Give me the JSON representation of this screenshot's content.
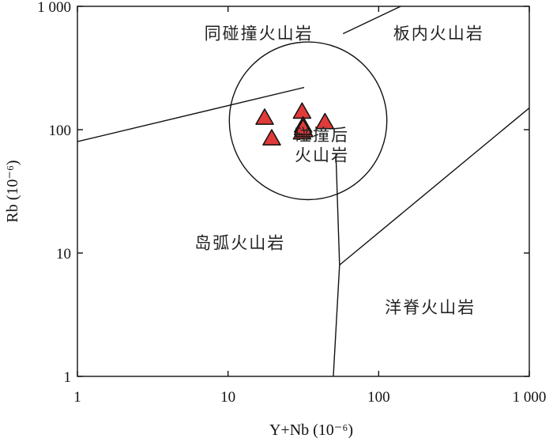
{
  "chart_data": {
    "type": "scatter",
    "title": "",
    "xlabel": "Y+Nb (10⁻⁶)",
    "ylabel": "Rb (10⁻⁶)",
    "xscale": "log",
    "yscale": "log",
    "xlim": [
      1,
      1000
    ],
    "ylim": [
      1,
      1000
    ],
    "x_ticks": [
      {
        "value": 1,
        "label": "1"
      },
      {
        "value": 10,
        "label": "10"
      },
      {
        "value": 100,
        "label": "100"
      },
      {
        "value": 1000,
        "label": "1 000"
      }
    ],
    "y_ticks": [
      {
        "value": 1,
        "label": "1"
      },
      {
        "value": 10,
        "label": "10"
      },
      {
        "value": 100,
        "label": "100"
      },
      {
        "value": 1000,
        "label": "1 000"
      }
    ],
    "regions": [
      {
        "name": "syn-collision",
        "label": "同碰撞火山岩",
        "at": [
          16,
          600
        ]
      },
      {
        "name": "within-plate",
        "label": "板内火山岩",
        "at": [
          250,
          600
        ]
      },
      {
        "name": "post-collision",
        "label": "碰撞后",
        "at": [
          42,
          90
        ]
      },
      {
        "name": "post-collision-2",
        "label": "火山岩",
        "at": [
          42,
          62
        ]
      },
      {
        "name": "island-arc",
        "label": "岛弧火山岩",
        "at": [
          12,
          12
        ]
      },
      {
        "name": "ocean-ridge",
        "label": "洋脊火山岩",
        "at": [
          220,
          3.6
        ]
      }
    ],
    "boundaries": [
      {
        "name": "syn-collision-lower",
        "points": [
          [
            1,
            80
          ],
          [
            32,
            220
          ]
        ]
      },
      {
        "name": "within-plate-upper",
        "points": [
          [
            58,
            600
          ],
          [
            140,
            1000
          ]
        ]
      },
      {
        "name": "within-plate-lower",
        "points": [
          [
            55,
            8
          ],
          [
            1000,
            150
          ]
        ]
      },
      {
        "name": "arc-ridge-divide",
        "points": [
          [
            52,
            64
          ],
          [
            55,
            8
          ],
          [
            50,
            1
          ]
        ]
      }
    ],
    "circle": {
      "center": [
        34,
        118
      ],
      "radius_x_decades": 0.523
    },
    "marker": {
      "shape": "triangle",
      "fill": "#e03a3a",
      "stroke": "#111111"
    },
    "points": [
      {
        "x": 17.5,
        "y": 125
      },
      {
        "x": 19.5,
        "y": 85
      },
      {
        "x": 31,
        "y": 140
      },
      {
        "x": 31.5,
        "y": 108
      },
      {
        "x": 31,
        "y": 95
      },
      {
        "x": 32,
        "y": 99
      },
      {
        "x": 31.5,
        "y": 103
      },
      {
        "x": 44,
        "y": 115
      }
    ],
    "grid": false
  }
}
